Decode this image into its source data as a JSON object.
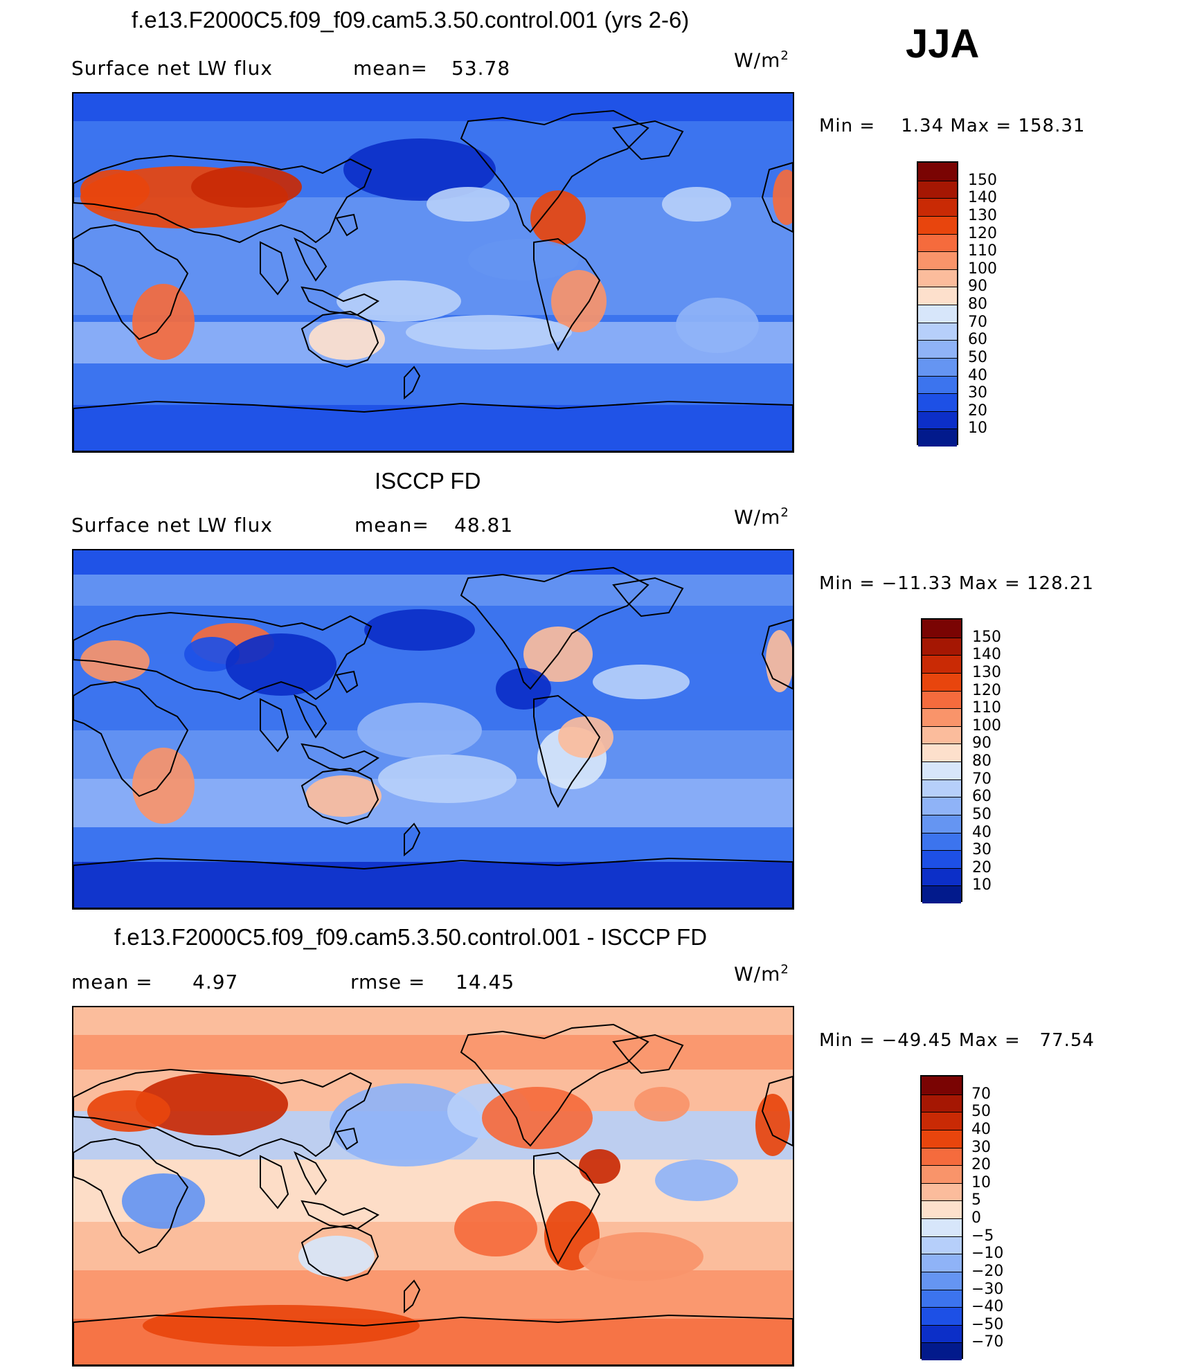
{
  "season": "JJA",
  "units_base": "W/m",
  "units_exp": "2",
  "panels": [
    {
      "title": "f.e13.F2000C5.f09_f09.cam5.3.50.control.001 (yrs 2-6)",
      "left_label": "Surface net LW flux",
      "mid_label": "mean=",
      "mid_value": "53.78",
      "minmax": "Min =    1.34 Max = 158.31",
      "colorbar_labels": [
        "150",
        "140",
        "130",
        "120",
        "110",
        "100",
        "90",
        "80",
        "70",
        "60",
        "50",
        "40",
        "30",
        "20",
        "10"
      ],
      "palette": [
        "#7a0403",
        "#a51703",
        "#c92a05",
        "#e8450d",
        "#f56b3d",
        "#f9946a",
        "#fbbc9c",
        "#fde0cc",
        "#d7e6fa",
        "#b6cffa",
        "#8fb3f7",
        "#6595f2",
        "#3c74ee",
        "#1d50e6",
        "#0c2fc8",
        "#021a8c"
      ],
      "map_palette": [
        "#021a8c",
        "#0c2fc8",
        "#1d50e6",
        "#3c74ee",
        "#6595f2",
        "#8fb3f7",
        "#b6cffa",
        "#d7e6fa",
        "#fde0cc",
        "#fbbc9c",
        "#f9946a",
        "#f56b3d",
        "#e8450d",
        "#c92a05",
        "#a51703",
        "#7a0403"
      ]
    },
    {
      "title": "ISCCP FD",
      "left_label": "Surface net LW flux",
      "mid_label": "mean=",
      "mid_value": "48.81",
      "minmax": "Min = −11.33 Max = 128.21",
      "colorbar_labels": [
        "150",
        "140",
        "130",
        "120",
        "110",
        "100",
        "90",
        "80",
        "70",
        "60",
        "50",
        "40",
        "30",
        "20",
        "10"
      ],
      "palette": [
        "#7a0403",
        "#a51703",
        "#c92a05",
        "#e8450d",
        "#f56b3d",
        "#f9946a",
        "#fbbc9c",
        "#fde0cc",
        "#d7e6fa",
        "#b6cffa",
        "#8fb3f7",
        "#6595f2",
        "#3c74ee",
        "#1d50e6",
        "#0c2fc8",
        "#021a8c"
      ],
      "map_palette": [
        "#021a8c",
        "#0c2fc8",
        "#1d50e6",
        "#3c74ee",
        "#6595f2",
        "#8fb3f7",
        "#b6cffa",
        "#d7e6fa",
        "#fde0cc",
        "#fbbc9c",
        "#f9946a",
        "#f56b3d",
        "#e8450d",
        "#c92a05",
        "#a51703",
        "#7a0403"
      ]
    },
    {
      "title": "f.e13.F2000C5.f09_f09.cam5.3.50.control.001 - ISCCP FD",
      "left_label": "mean =",
      "left_value": "4.97",
      "mid_label": "rmse =",
      "mid_value": "14.45",
      "minmax": "Min = −49.45 Max =   77.54",
      "colorbar_labels": [
        "70",
        "50",
        "40",
        "30",
        "20",
        "10",
        "5",
        "0",
        "−5",
        "−10",
        "−20",
        "−30",
        "−40",
        "−50",
        "−70"
      ],
      "palette": [
        "#7a0403",
        "#a51703",
        "#c92a05",
        "#e8450d",
        "#f56b3d",
        "#f9946a",
        "#fbbc9c",
        "#fde0cc",
        "#d7e6fa",
        "#b6cffa",
        "#8fb3f7",
        "#6595f2",
        "#3c74ee",
        "#1d50e6",
        "#0c2fc8",
        "#021a8c"
      ],
      "map_palette": [
        "#021a8c",
        "#0c2fc8",
        "#1d50e6",
        "#3c74ee",
        "#6595f2",
        "#8fb3f7",
        "#b6cffa",
        "#d7e6fa",
        "#fde0cc",
        "#fbbc9c",
        "#f9946a",
        "#f56b3d",
        "#e8450d",
        "#c92a05",
        "#a51703",
        "#7a0403"
      ]
    }
  ]
}
